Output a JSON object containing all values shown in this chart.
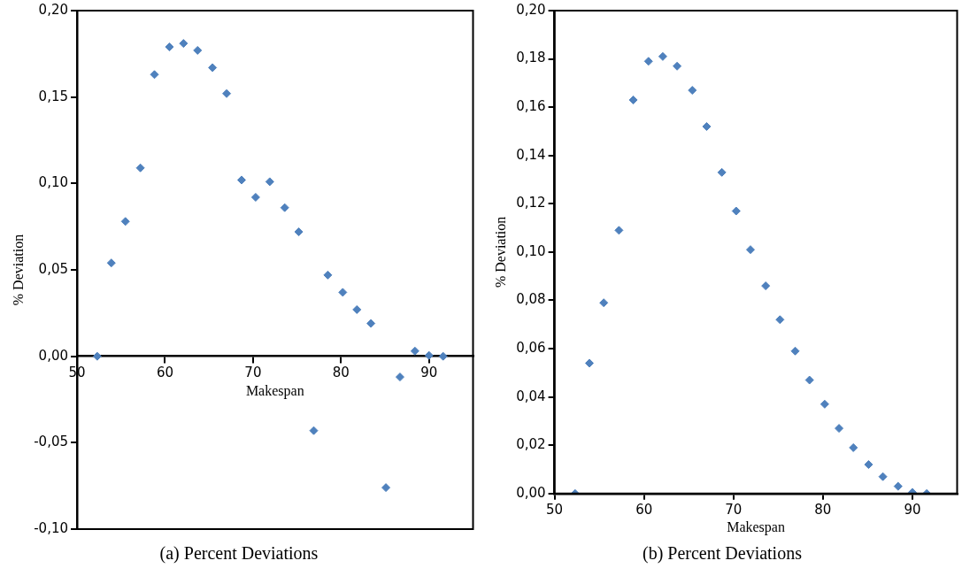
{
  "chart_data": [
    {
      "type": "scatter",
      "title": "(a) Percent Deviations",
      "xlabel": "Makespan",
      "ylabel": "% Deviation",
      "marker": "diamond",
      "x": [
        52.3,
        53.9,
        55.5,
        57.2,
        58.8,
        60.5,
        62.1,
        63.7,
        65.4,
        67.0,
        68.7,
        70.3,
        71.9,
        73.6,
        75.2,
        76.9,
        78.5,
        80.2,
        81.8,
        83.4,
        85.1,
        86.7,
        88.4,
        90.0,
        91.6
      ],
      "series": [
        {
          "color": "#4f81bd",
          "values": [
            0,
            0.054,
            0.078,
            0.109,
            0.163,
            0.179,
            0.181,
            0.177,
            0.167,
            0.152,
            0.102,
            0.092,
            0.101,
            0.086,
            0.072,
            -0.043,
            0.047,
            0.037,
            0.027,
            0.019,
            -0.076,
            -0.012,
            0.003,
            0.0005,
            0
          ]
        }
      ],
      "xlim": [
        50,
        95
      ],
      "xticks": [
        50,
        60,
        70,
        80,
        90
      ],
      "ylim": [
        -0.1,
        0.2
      ],
      "yticks": [
        {
          "value": -0.1,
          "label": "-0,10"
        },
        {
          "value": -0.05,
          "label": "-0,05"
        },
        {
          "value": 0,
          "label": "0,00"
        },
        {
          "value": 0.05,
          "label": "0,05"
        },
        {
          "value": 0.1,
          "label": "0,10"
        },
        {
          "value": 0.15,
          "label": "0,15"
        },
        {
          "value": 0.2,
          "label": "0,20"
        }
      ]
    },
    {
      "type": "scatter",
      "title": "(b) Percent Deviations",
      "xlabel": "Makespan",
      "ylabel": "% Deviation",
      "marker": "diamond",
      "x": [
        52.3,
        53.9,
        55.5,
        57.2,
        58.8,
        60.5,
        62.1,
        63.7,
        65.4,
        67.0,
        68.7,
        70.3,
        71.9,
        73.6,
        75.2,
        76.9,
        78.5,
        80.2,
        81.8,
        83.4,
        85.1,
        86.7,
        88.4,
        90.0,
        91.6
      ],
      "series": [
        {
          "color": "#4f81bd",
          "values": [
            0,
            0.054,
            0.079,
            0.109,
            0.163,
            0.179,
            0.181,
            0.177,
            0.167,
            0.152,
            0.133,
            0.117,
            0.101,
            0.086,
            0.072,
            0.059,
            0.047,
            0.037,
            0.027,
            0.019,
            0.012,
            0.007,
            0.003,
            0.0005,
            0
          ]
        }
      ],
      "xlim": [
        50,
        95
      ],
      "xticks": [
        50,
        60,
        70,
        80,
        90
      ],
      "ylim": [
        0,
        0.2
      ],
      "yticks": [
        {
          "value": 0,
          "label": "0,00"
        },
        {
          "value": 0.02,
          "label": "0,02"
        },
        {
          "value": 0.04,
          "label": "0,04"
        },
        {
          "value": 0.06,
          "label": "0,06"
        },
        {
          "value": 0.08,
          "label": "0,08"
        },
        {
          "value": 0.1,
          "label": "0,10"
        },
        {
          "value": 0.12,
          "label": "0,12"
        },
        {
          "value": 0.14,
          "label": "0,14"
        },
        {
          "value": 0.16,
          "label": "0,16"
        },
        {
          "value": 0.18,
          "label": "0,18"
        },
        {
          "value": 0.2,
          "label": "0,20"
        }
      ]
    }
  ]
}
